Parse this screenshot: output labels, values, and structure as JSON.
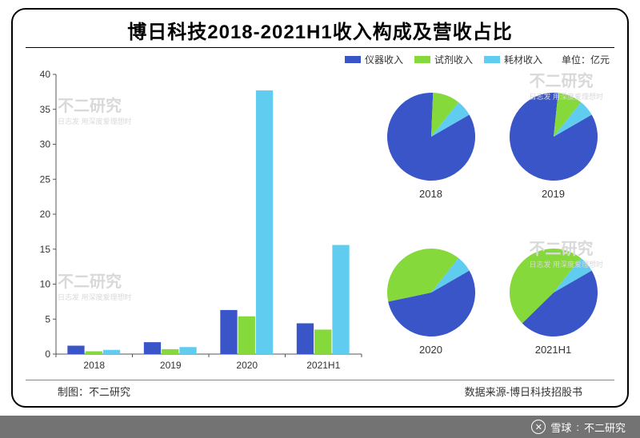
{
  "title": "博日科技2018-2021H1收入构成及营收占比",
  "unit_label": "单位：亿元",
  "legend": [
    {
      "label": "仪器收入",
      "color": "#3a55c8"
    },
    {
      "label": "试剂收入",
      "color": "#86d93a"
    },
    {
      "label": "耗材收入",
      "color": "#5fccf0"
    }
  ],
  "colors": {
    "series1": "#3a55c8",
    "series2": "#86d93a",
    "series3": "#5fccf0",
    "axis": "#555555",
    "tick_text": "#333333",
    "background": "#ffffff",
    "frame": "#000000",
    "watermark": "#d9d9d9"
  },
  "bar_chart": {
    "type": "bar",
    "ylim": [
      0,
      40
    ],
    "ytick_step": 5,
    "categories": [
      "2018",
      "2019",
      "2020",
      "2021H1"
    ],
    "series": {
      "仪器收入": [
        1.2,
        1.7,
        6.3,
        4.4
      ],
      "试剂收入": [
        0.4,
        0.7,
        5.4,
        3.5
      ],
      "耗材收入": [
        0.6,
        1.0,
        37.7,
        15.6
      ]
    },
    "bar_group_width": 0.7,
    "axis_fontsize": 12
  },
  "pies": [
    {
      "label": "2018",
      "slices": [
        {
          "key": "仪器收入",
          "value": 84,
          "color": "#3a55c8"
        },
        {
          "key": "试剂收入",
          "value": 10,
          "color": "#86d93a"
        },
        {
          "key": "耗材收入",
          "value": 6,
          "color": "#5fccf0"
        }
      ]
    },
    {
      "label": "2019",
      "slices": [
        {
          "key": "仪器收入",
          "value": 85,
          "color": "#3a55c8"
        },
        {
          "key": "试剂收入",
          "value": 9,
          "color": "#86d93a"
        },
        {
          "key": "耗材收入",
          "value": 6,
          "color": "#5fccf0"
        }
      ]
    },
    {
      "label": "2020",
      "slices": [
        {
          "key": "仪器收入",
          "value": 55,
          "color": "#3a55c8"
        },
        {
          "key": "试剂收入",
          "value": 39,
          "color": "#86d93a"
        },
        {
          "key": "耗材收入",
          "value": 6,
          "color": "#5fccf0"
        }
      ]
    },
    {
      "label": "2021H1",
      "slices": [
        {
          "key": "仪器收入",
          "value": 46,
          "color": "#3a55c8"
        },
        {
          "key": "试剂收入",
          "value": 48,
          "color": "#86d93a"
        },
        {
          "key": "耗材收入",
          "value": 6,
          "color": "#5fccf0"
        }
      ]
    }
  ],
  "pie_start_angle_deg": -30,
  "footer": {
    "left": "制图：不二研究",
    "right": "数据来源-博日科技招股书"
  },
  "watermarks": {
    "line1": "不二研究",
    "line2": "日志发 用深度爱理想时"
  },
  "bottom_bar": {
    "brand": "雪球",
    "author": "不二研究"
  }
}
